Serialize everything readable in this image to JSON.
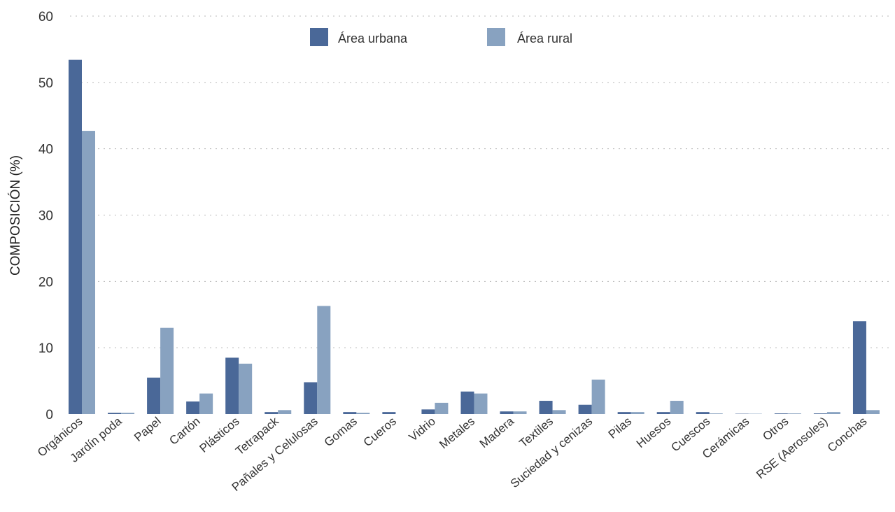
{
  "chart_data": {
    "type": "bar",
    "title": "",
    "xlabel": "",
    "ylabel": "COMPOSICIÓN (%)",
    "ylim": [
      0,
      60
    ],
    "yticks": [
      0,
      10,
      20,
      30,
      40,
      50,
      60
    ],
    "grid": true,
    "legend_position": "top-center",
    "categories": [
      "Orgánicos",
      "Jardín poda",
      "Papel",
      "Cartón",
      "Plásticos",
      "Tetrapack",
      "Pañales y Celulosas",
      "Gomas",
      "Cueros",
      "Vidrio",
      "Metales",
      "Madera",
      "Textiles",
      "Suciedad y cenizas",
      "Pilas",
      "Huesos",
      "Cuescos",
      "Cerámicas",
      "Otros",
      "RSE (Aerosoles)",
      "Conchas"
    ],
    "series": [
      {
        "name": "Área urbana",
        "color": "#4a6898",
        "values": [
          53.4,
          0.2,
          5.5,
          1.9,
          8.5,
          0.3,
          4.8,
          0.3,
          0.3,
          0.7,
          3.4,
          0.4,
          2.0,
          1.4,
          0.3,
          0.3,
          0.3,
          0.05,
          0.1,
          0.1,
          14.0
        ]
      },
      {
        "name": "Área rural",
        "color": "#88a2c0",
        "values": [
          42.7,
          0.2,
          13.0,
          3.1,
          7.6,
          0.6,
          16.3,
          0.2,
          0.0,
          1.7,
          3.1,
          0.4,
          0.6,
          5.2,
          0.3,
          2.0,
          0.1,
          0.05,
          0.1,
          0.3,
          0.6
        ]
      }
    ]
  }
}
